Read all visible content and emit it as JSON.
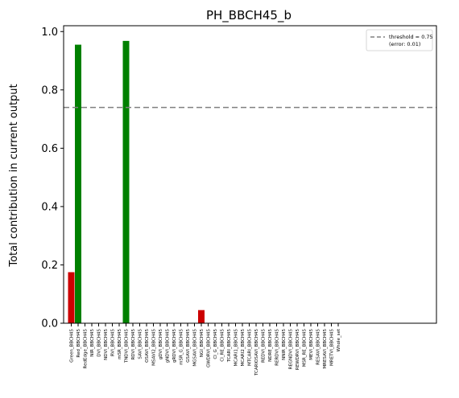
{
  "chart_data": {
    "type": "bar",
    "title": "PH_BBCH45_b",
    "xlabel": "",
    "ylabel": "Total contribution in current output",
    "ylim": [
      0,
      1.02
    ],
    "yticks": [
      "0.0",
      "0.2",
      "0.4",
      "0.6",
      "0.8",
      "1.0"
    ],
    "grid": false,
    "legend_position": "top-right",
    "legend": {
      "line1": "threshold = 0.75",
      "line2": "(error: 0.01)"
    },
    "threshold": 0.74,
    "colors": {
      "above_threshold": "#008000",
      "below_threshold": "#cc0000",
      "threshold_line": "#808080"
    },
    "categories": [
      "Green_BBCH45",
      "Red_BBCH45",
      "RedEdge_BBCH45",
      "NIR_BBCH45",
      "DVI_BBCH45",
      "NDVI_BBCH45",
      "RVI_BBCH45",
      "mSR_BBCH45",
      "TNDVI_BBCH45",
      "RDVI_BBCH45",
      "SAVI_BBCH45",
      "OSAVI_BBCH45",
      "MSAVI2_BBCH45",
      "gDVI_BBCH45",
      "gNDVI_BBCH45",
      "gRDVI_BBCH45",
      "mSR_G_BBCH45",
      "GSAVI_BBCH45",
      "MGSAVI_BBCH45",
      "NGI_BBCH45",
      "GWDRVI_BBCH45",
      "CI_G_BBCH45",
      "CI_RE_BBCH45",
      "TCARI_BBCH45",
      "MCARI1_BBCH45",
      "MCARI2_BBCH45",
      "MTCARI_BBCH45",
      "TCARIOSAVI_BBCH45",
      "REDVI_BBCH45",
      "NDRE_BBCH45",
      "RERDVI_BBCH45",
      "NNIR_BBCH45",
      "REGNDVI_BBCH45",
      "REWDRVI_BBCH45",
      "MSR_RE_BBCH45",
      "MEVI_BBCH45",
      "RESAVI_BBCH45",
      "MRESAVI_BBCH45",
      "MRETVI_BBCH45",
      "Whole_set"
    ],
    "values": [
      0.175,
      0.955,
      0,
      0,
      0,
      0,
      0,
      0,
      0.968,
      0,
      0,
      0,
      0,
      0,
      0,
      0,
      0,
      0,
      0,
      0.045,
      0,
      0,
      0,
      0,
      0,
      0,
      0,
      0,
      0,
      0,
      0,
      0,
      0,
      0,
      0,
      0,
      0,
      0,
      0,
      0
    ],
    "bar_colors": [
      "red",
      "green",
      "",
      "",
      "",
      "",
      "",
      "",
      "green",
      "",
      "",
      "",
      "",
      "",
      "",
      "",
      "",
      "",
      "",
      "red",
      "",
      "",
      "",
      "",
      "",
      "",
      "",
      "",
      "",
      "",
      "",
      "",
      "",
      "",
      "",
      "",
      "",
      "",
      "",
      ""
    ]
  }
}
